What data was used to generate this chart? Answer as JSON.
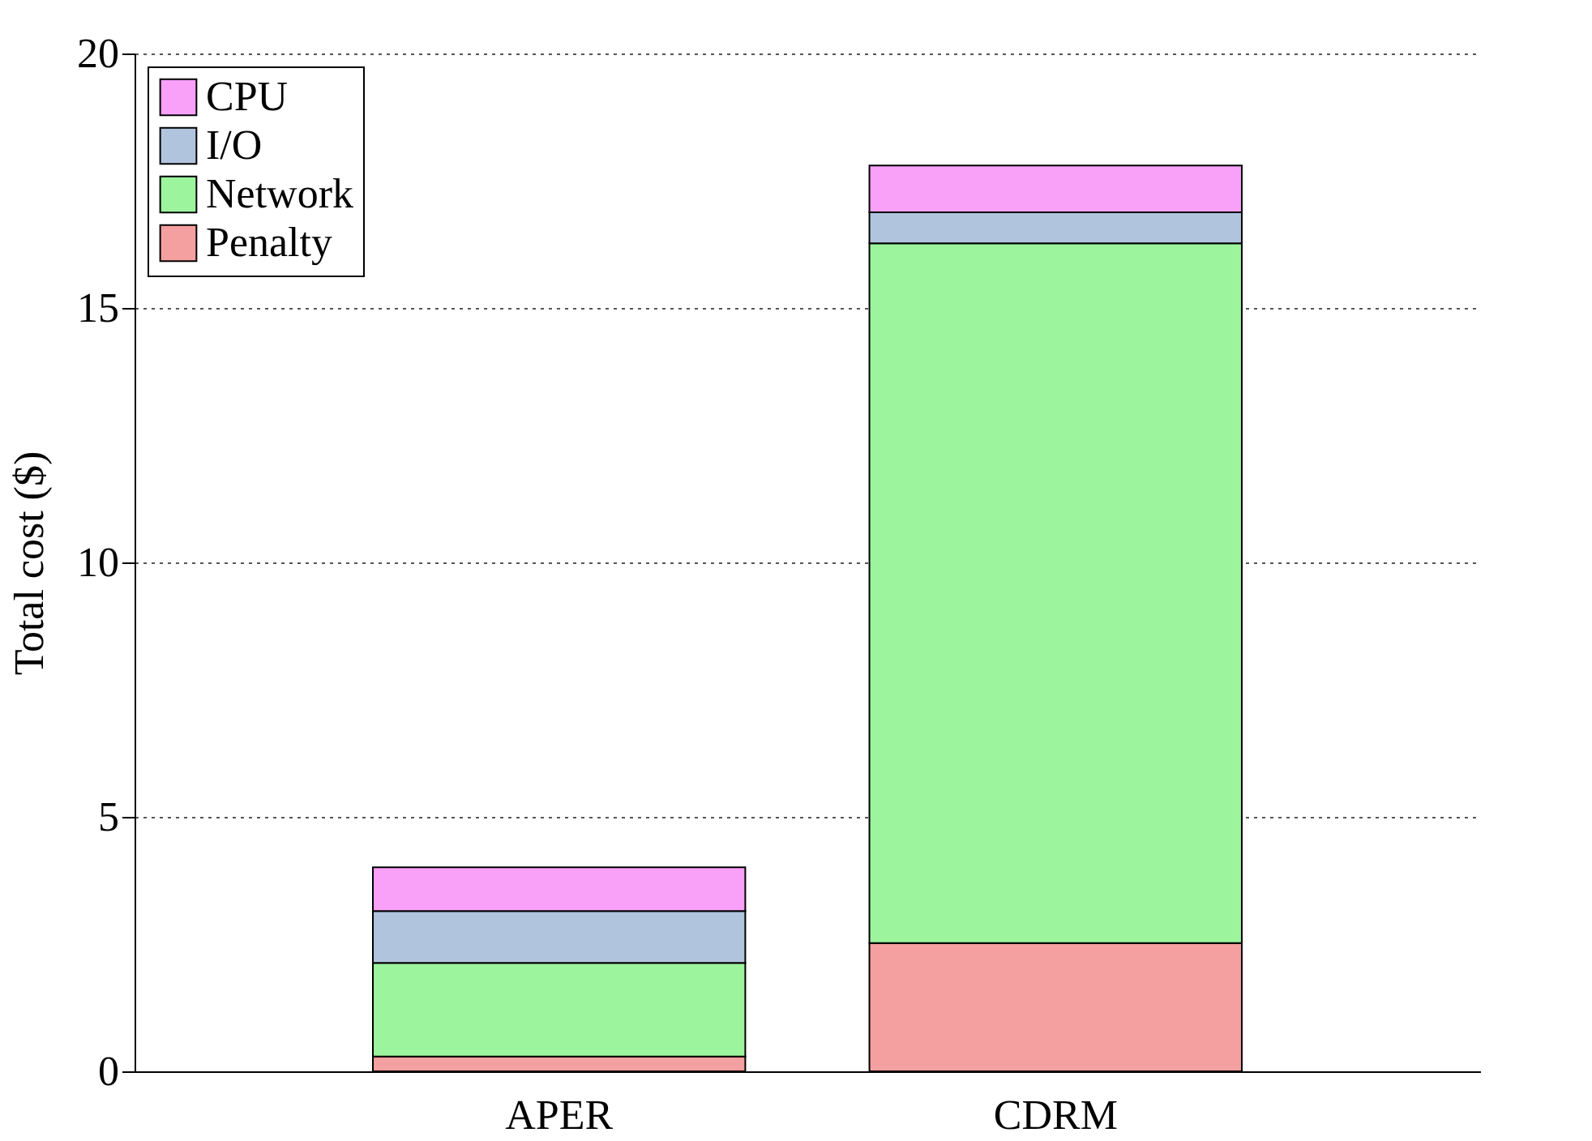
{
  "chart_data": {
    "type": "bar",
    "stacked": true,
    "ylabel": "Total cost ($)",
    "categories": [
      "APER",
      "CDRM"
    ],
    "series": [
      {
        "name": "Penalty",
        "color": "#f5a0a0",
        "values": [
          0.29,
          2.52
        ]
      },
      {
        "name": "Network",
        "color": "#9cf59c",
        "values": [
          1.84,
          13.75
        ]
      },
      {
        "name": "I/O",
        "color": "#b0c4de",
        "values": [
          1.02,
          0.61
        ]
      },
      {
        "name": "CPU",
        "color": "#f9a0f9",
        "values": [
          0.86,
          0.92
        ]
      }
    ],
    "ylim": [
      0,
      20
    ],
    "yticks": [
      0,
      5,
      10,
      15,
      20
    ],
    "grid": "y",
    "legend": "top left"
  }
}
